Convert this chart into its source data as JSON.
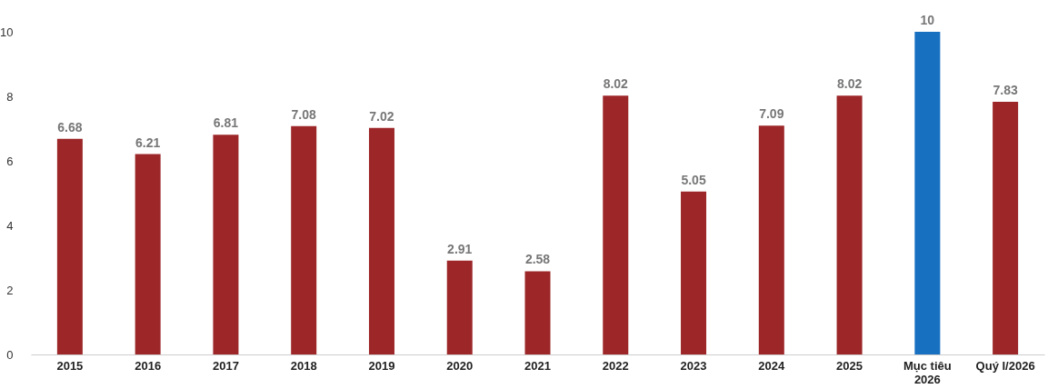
{
  "chart_data": {
    "type": "bar",
    "categories": [
      "2015",
      "2016",
      "2017",
      "2018",
      "2019",
      "2020",
      "2021",
      "2022",
      "2023",
      "2024",
      "2025",
      "Mục tiêu\n2026",
      "Quý I/2026"
    ],
    "values": [
      6.68,
      6.21,
      6.81,
      7.08,
      7.02,
      2.91,
      2.58,
      8.02,
      5.05,
      7.09,
      8.02,
      10,
      7.83
    ],
    "colors": [
      "#9c2628",
      "#9c2628",
      "#9c2628",
      "#9c2628",
      "#9c2628",
      "#9c2628",
      "#9c2628",
      "#9c2628",
      "#9c2628",
      "#9c2628",
      "#9c2628",
      "#1870c0",
      "#9c2628"
    ],
    "ylim": [
      0,
      10
    ],
    "yticks": [
      0,
      2,
      4,
      6,
      8,
      10
    ],
    "data_labels": true,
    "grid": false,
    "legend": false
  }
}
